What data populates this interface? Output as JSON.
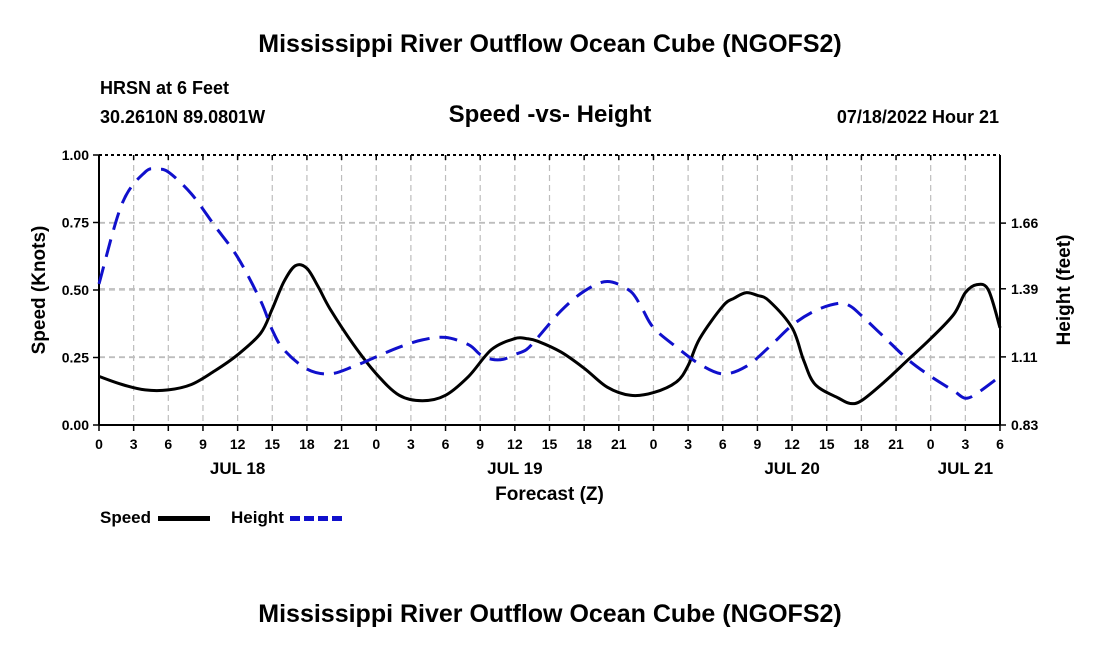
{
  "header": {
    "title": "Mississippi River Outflow Ocean Cube (NGOFS2)",
    "station": "HRSN at 6 Feet",
    "location": "30.2610N  89.0801W",
    "subtitle": "Speed -vs- Height",
    "datetime": "07/18/2022 Hour 21"
  },
  "footer": {
    "title": "Mississippi River Outflow Ocean Cube (NGOFS2)"
  },
  "legend": {
    "speed_label": "Speed",
    "height_label": "Height"
  },
  "colors": {
    "speed": "#000000",
    "height": "#1010cc",
    "grid": "#bdbdbd"
  },
  "chart_data": {
    "type": "line",
    "xlabel": "Forecast (Z)",
    "ylabel": "Speed (Knots)",
    "ylabel_right": "Height (feet)",
    "x_unit": "hours from 00Z Jul 18",
    "xlim": [
      0,
      78
    ],
    "ylim": [
      0,
      1
    ],
    "ylim_right": [
      0.83,
      1.94
    ],
    "x_tick_values": [
      0,
      3,
      6,
      9,
      12,
      15,
      18,
      21,
      24,
      27,
      30,
      33,
      36,
      39,
      42,
      45,
      48,
      51,
      54,
      57,
      60,
      63,
      66,
      69,
      72,
      75,
      78
    ],
    "x_tick_labels": [
      "0",
      "3",
      "6",
      "9",
      "12",
      "15",
      "18",
      "21",
      "0",
      "3",
      "6",
      "9",
      "12",
      "15",
      "18",
      "21",
      "0",
      "3",
      "6",
      "9",
      "12",
      "15",
      "18",
      "21",
      "0",
      "3",
      "6"
    ],
    "date_labels": [
      {
        "x": 12,
        "label": "JUL 18"
      },
      {
        "x": 36,
        "label": "JUL 19"
      },
      {
        "x": 60,
        "label": "JUL 20"
      },
      {
        "x": 75,
        "label": "JUL 21"
      }
    ],
    "y_ticks": [
      0,
      0.25,
      0.5,
      0.75,
      1.0
    ],
    "y_tick_labels": [
      "0.00",
      "0.25",
      "0.50",
      "0.75",
      "1.00"
    ],
    "y_right_ticks": [
      0.83,
      1.11,
      1.39,
      1.66
    ],
    "y_right_tick_labels": [
      "0.83",
      "1.11",
      "1.39",
      "1.66"
    ],
    "grid": true,
    "series": [
      {
        "name": "Speed",
        "axis": "left",
        "style": "solid",
        "x": [
          0,
          2,
          4,
          6,
          8,
          10,
          12,
          14,
          15,
          16,
          17,
          18,
          19,
          20,
          22,
          24,
          26,
          28,
          30,
          32,
          34,
          36,
          37,
          38,
          40,
          42,
          44,
          46,
          48,
          50,
          51,
          52,
          54,
          55,
          56,
          57,
          58,
          60,
          61,
          62,
          64,
          65,
          66,
          68,
          70,
          72,
          74,
          75,
          76,
          77,
          78
        ],
        "y": [
          0.18,
          0.15,
          0.13,
          0.13,
          0.15,
          0.2,
          0.26,
          0.34,
          0.43,
          0.53,
          0.59,
          0.58,
          0.51,
          0.43,
          0.3,
          0.19,
          0.11,
          0.09,
          0.11,
          0.18,
          0.28,
          0.32,
          0.32,
          0.31,
          0.27,
          0.21,
          0.14,
          0.11,
          0.12,
          0.16,
          0.22,
          0.32,
          0.44,
          0.47,
          0.49,
          0.48,
          0.46,
          0.36,
          0.24,
          0.15,
          0.1,
          0.08,
          0.09,
          0.16,
          0.24,
          0.32,
          0.41,
          0.49,
          0.52,
          0.5,
          0.36
        ]
      },
      {
        "name": "Height",
        "axis": "right",
        "style": "dashed",
        "x": [
          0,
          2,
          4,
          5,
          6,
          8,
          10,
          12,
          14,
          15,
          16,
          18,
          20,
          22,
          24,
          26,
          28,
          30,
          32,
          33,
          34,
          35,
          36,
          37,
          38,
          40,
          42,
          44,
          46,
          47,
          48,
          50,
          52,
          54,
          56,
          58,
          60,
          62,
          64,
          65,
          66,
          68,
          70,
          72,
          74,
          75,
          76,
          78
        ],
        "y": [
          1.41,
          1.74,
          1.87,
          1.88,
          1.87,
          1.78,
          1.65,
          1.52,
          1.34,
          1.22,
          1.14,
          1.06,
          1.04,
          1.07,
          1.11,
          1.15,
          1.18,
          1.19,
          1.16,
          1.12,
          1.1,
          1.1,
          1.12,
          1.14,
          1.19,
          1.3,
          1.38,
          1.42,
          1.38,
          1.31,
          1.23,
          1.15,
          1.08,
          1.04,
          1.07,
          1.15,
          1.24,
          1.3,
          1.33,
          1.32,
          1.28,
          1.19,
          1.1,
          1.03,
          0.97,
          0.94,
          0.96,
          1.03
        ]
      }
    ]
  }
}
